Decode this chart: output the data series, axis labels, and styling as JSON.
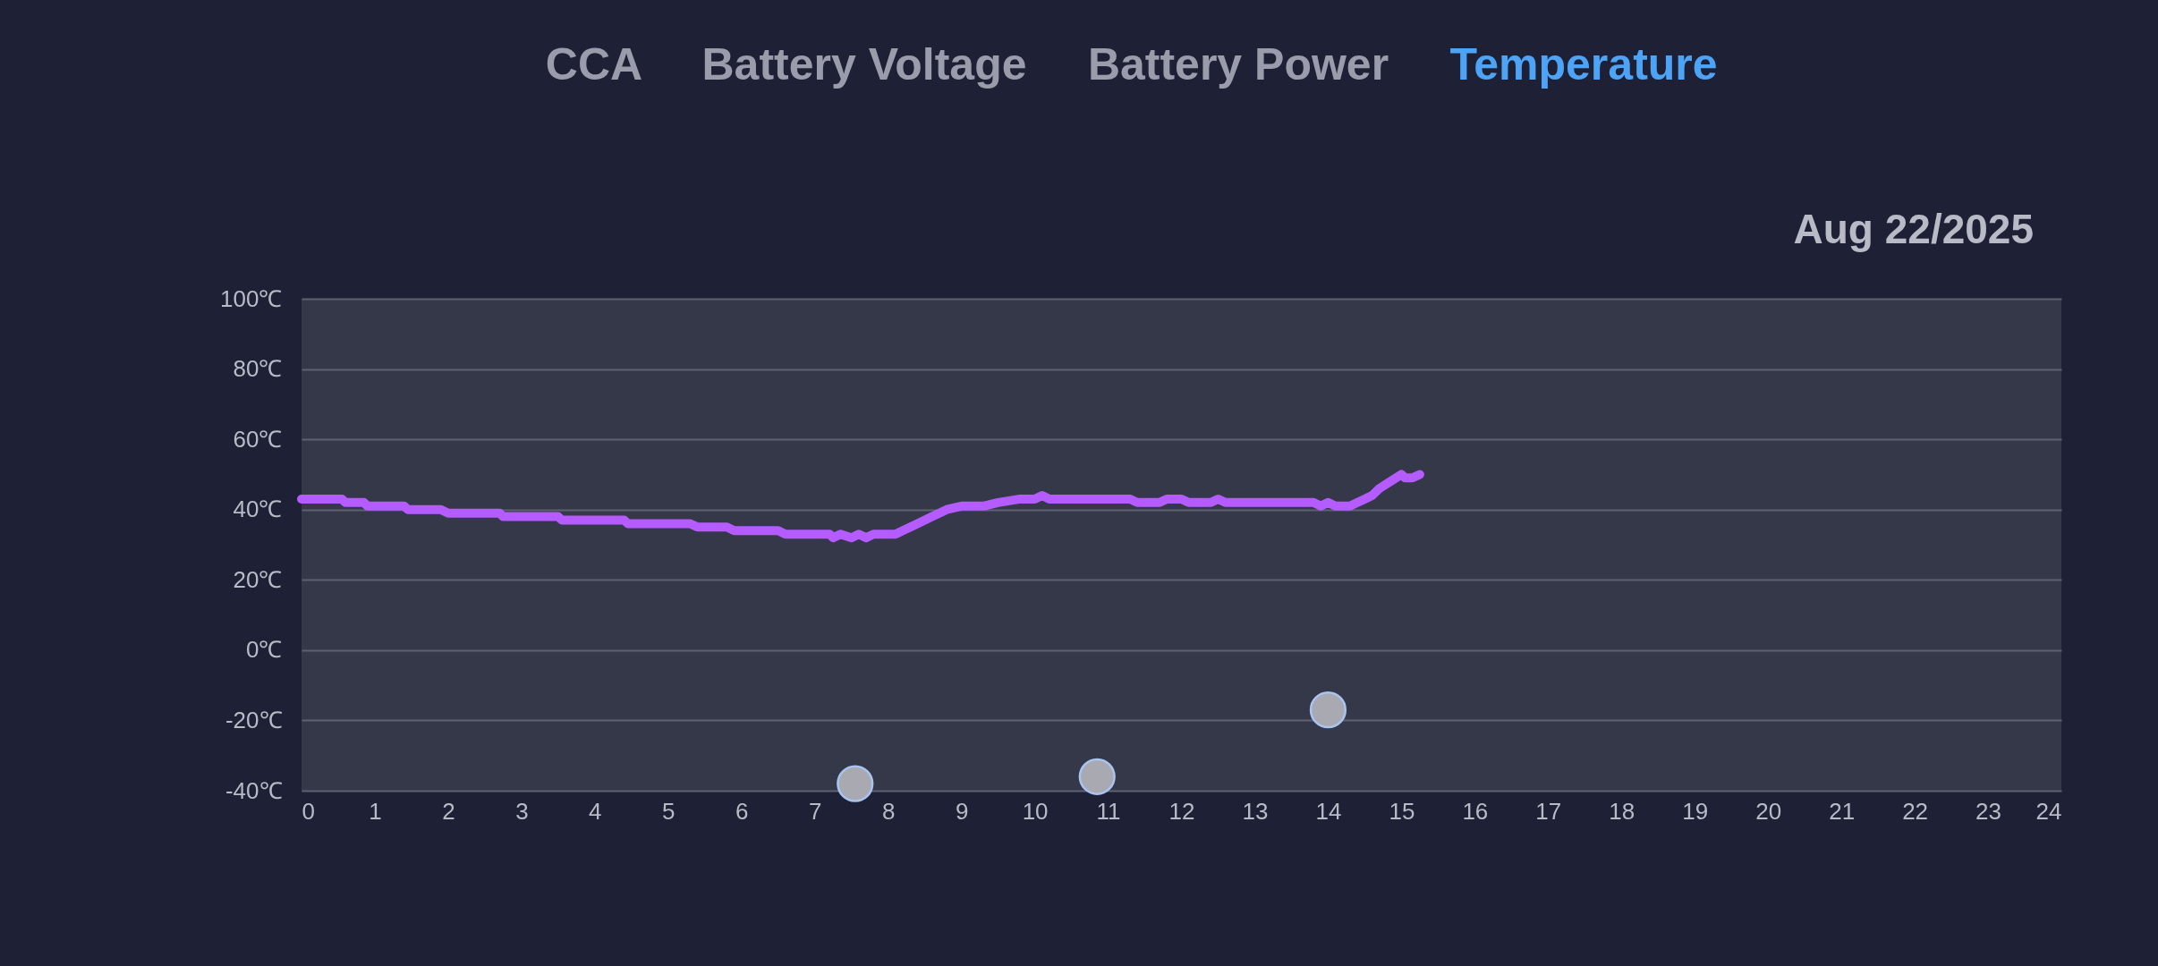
{
  "chart_data": {
    "type": "line",
    "annotations": [
      "CCA",
      "Battery Voltage",
      "Battery Power",
      "Temperature",
      "Aug 22/2025"
    ],
    "xlim": [
      0,
      24
    ],
    "xticks": [
      0,
      1,
      2,
      3,
      4,
      5,
      6,
      7,
      8,
      9,
      10,
      11,
      12,
      13,
      14,
      15,
      16,
      17,
      18,
      19,
      20,
      21,
      22,
      23,
      24
    ],
    "ylim": [
      -40,
      100
    ],
    "yticks": [
      {
        "value": -40,
        "label": "-40℃"
      },
      {
        "value": -20,
        "label": "-20℃"
      },
      {
        "value": 0,
        "label": "0℃"
      },
      {
        "value": 20,
        "label": "20℃"
      },
      {
        "value": 40,
        "label": "40℃"
      },
      {
        "value": 60,
        "label": "60℃"
      },
      {
        "value": 80,
        "label": "80℃"
      },
      {
        "value": 100,
        "label": "100℃"
      }
    ],
    "grid": "y",
    "series": [
      {
        "color": "#b45cff",
        "x": [
          0,
          0.55,
          0.6,
          0.85,
          0.9,
          1.4,
          1.45,
          1.9,
          2.0,
          2.7,
          2.75,
          3.5,
          3.55,
          4.4,
          4.45,
          5.3,
          5.4,
          5.8,
          5.9,
          6.5,
          6.6,
          7.2,
          7.25,
          7.35,
          7.5,
          7.6,
          7.7,
          7.8,
          8.1,
          8.2,
          8.4,
          8.6,
          8.8,
          9.0,
          9.3,
          9.5,
          9.8,
          10.0,
          10.1,
          10.2,
          11.3,
          11.4,
          11.7,
          11.8,
          12.0,
          12.1,
          12.4,
          12.5,
          12.6,
          13.8,
          13.9,
          14.0,
          14.1,
          14.3,
          14.4,
          14.5,
          14.6,
          14.7,
          14.85,
          15.0,
          15.05,
          15.15,
          15.25
        ],
        "values": [
          43,
          43,
          42,
          42,
          41,
          41,
          40,
          40,
          39,
          39,
          38,
          38,
          37,
          37,
          36,
          36,
          35,
          35,
          34,
          34,
          33,
          33,
          32,
          33,
          32,
          33,
          32,
          33,
          33,
          34,
          36,
          38,
          40,
          41,
          41,
          42,
          43,
          43,
          44,
          43,
          43,
          42,
          42,
          43,
          43,
          42,
          42,
          43,
          42,
          42,
          41,
          42,
          41,
          41,
          42,
          43,
          44,
          46,
          48,
          50,
          49,
          49,
          50
        ]
      },
      {
        "type": "scatter",
        "color": "#a9a9b1",
        "marker": "circle",
        "x": [
          7.55,
          10.85,
          14.0
        ],
        "values": [
          -38,
          -36,
          -17
        ]
      }
    ]
  }
}
